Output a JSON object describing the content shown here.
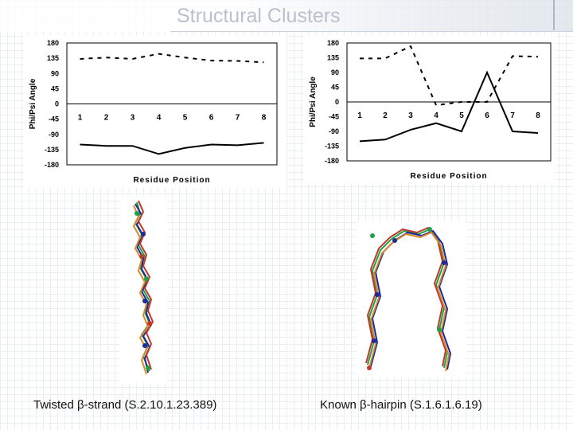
{
  "slide": {
    "title": "Structural Clusters"
  },
  "captions": {
    "left": "Twisted β-strand (S.2.10.1.23.389)",
    "right": "Known β-hairpin (S.1.6.1.6.19)"
  },
  "colors": {
    "title": "#b8c1cc",
    "series": "#000000",
    "struct_green": "#1fa04a",
    "struct_blue": "#1c2a9a",
    "struct_red": "#c0392b",
    "struct_orange": "#d98a2b"
  },
  "chart_data": [
    {
      "type": "line",
      "ylabel": "Phi/Psi Angle",
      "xlabel": "Residue Position",
      "ylim": [
        -180,
        180
      ],
      "yticks": [
        "180",
        "135",
        "90",
        "45",
        "0",
        "-45",
        "-90",
        "-135",
        "-180"
      ],
      "xticks": [
        "1",
        "2",
        "3",
        "4",
        "5",
        "6",
        "7",
        "8"
      ],
      "x": [
        1,
        2,
        3,
        4,
        5,
        6,
        7,
        8
      ],
      "grid": false,
      "series": [
        {
          "style": "dashed",
          "values": [
            133,
            137,
            133,
            148,
            137,
            128,
            127,
            123
          ]
        },
        {
          "style": "solid",
          "values": [
            -120,
            -124,
            -124,
            -148,
            -130,
            -120,
            -122,
            -115
          ]
        }
      ]
    },
    {
      "type": "line",
      "ylabel": "Phi/Psi Angle",
      "xlabel": "Residue Position",
      "ylim": [
        -180,
        180
      ],
      "yticks": [
        "180",
        "135",
        "90",
        "45",
        "0",
        "-45",
        "-90",
        "-135",
        "-180"
      ],
      "xticks": [
        "1",
        "2",
        "3",
        "4",
        "5",
        "6",
        "7",
        "8"
      ],
      "x": [
        1,
        2,
        3,
        4,
        5,
        6,
        7,
        8
      ],
      "grid": false,
      "series": [
        {
          "style": "dashed",
          "values": [
            133,
            133,
            170,
            -10,
            0,
            0,
            140,
            138
          ]
        },
        {
          "style": "solid",
          "values": [
            -120,
            -115,
            -85,
            -65,
            -90,
            90,
            -90,
            -95
          ]
        }
      ]
    }
  ]
}
